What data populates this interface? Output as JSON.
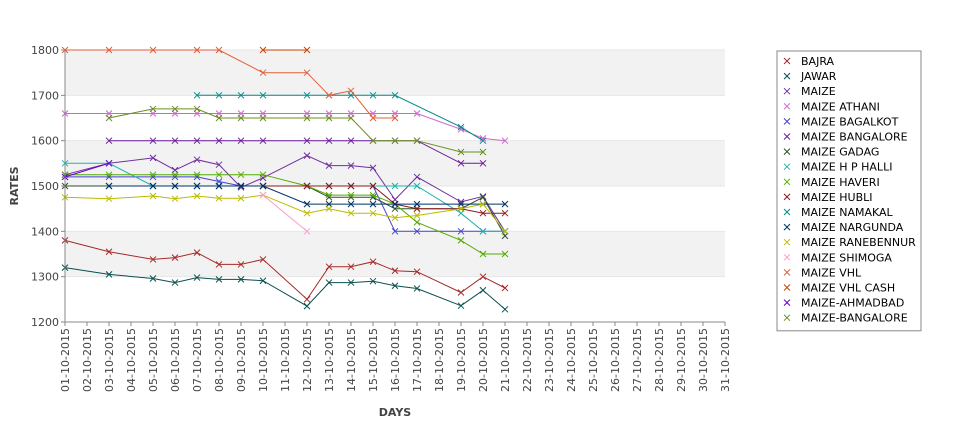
{
  "chart_data": {
    "type": "line",
    "xlabel": "DAYS",
    "ylabel": "RATES",
    "ylim": [
      1200,
      1800
    ],
    "yticks": [
      1200,
      1300,
      1400,
      1500,
      1600,
      1700,
      1800
    ],
    "grid": "alternating horizontal bands",
    "legend_position": "right",
    "categories": [
      "01-10-2015",
      "02-10-2015",
      "03-10-2015",
      "04-10-2015",
      "05-10-2015",
      "06-10-2015",
      "07-10-2015",
      "08-10-2015",
      "09-10-2015",
      "10-10-2015",
      "11-10-2015",
      "12-10-2015",
      "13-10-2015",
      "14-10-2015",
      "15-10-2015",
      "16-10-2015",
      "17-10-2015",
      "18-10-2015",
      "19-10-2015",
      "20-10-2015",
      "21-10-2015",
      "22-10-2015",
      "23-10-2015",
      "24-10-2015",
      "25-10-2015",
      "26-10-2015",
      "27-10-2015",
      "28-10-2015",
      "29-10-2015",
      "30-10-2015",
      "31-10-2015"
    ],
    "series": [
      {
        "name": "BAJRA",
        "color": "#a52a2a",
        "values": [
          1380,
          null,
          1355,
          null,
          1338,
          1342,
          1353,
          1327,
          1327,
          1338,
          null,
          1250,
          1322,
          1322,
          1333,
          1313,
          1311,
          null,
          1265,
          1300,
          1275,
          null,
          null,
          null,
          null,
          null,
          null,
          null,
          null,
          null,
          null
        ]
      },
      {
        "name": "JAWAR",
        "color": "#0b4f4f",
        "values": [
          1320,
          null,
          1305,
          null,
          1296,
          1287,
          1298,
          1294,
          1294,
          1291,
          null,
          1235,
          1287,
          1287,
          1290,
          1280,
          1274,
          null,
          1236,
          1270,
          1228,
          null,
          null,
          null,
          null,
          null,
          null,
          null,
          null,
          null,
          null
        ]
      },
      {
        "name": "MAIZE",
        "color": "#7030a0",
        "values": [
          1525,
          null,
          1550,
          null,
          1562,
          1535,
          1558,
          1547,
          1497,
          1518,
          null,
          1567,
          1545,
          1545,
          1540,
          1470,
          1520,
          null,
          1465,
          1477,
          1400,
          null,
          null,
          null,
          null,
          null,
          null,
          null,
          null,
          null,
          null
        ]
      },
      {
        "name": "MAIZE ATHANI",
        "color": "#cc66cc",
        "values": [
          1660,
          null,
          1660,
          null,
          1660,
          1660,
          1660,
          1660,
          1660,
          1660,
          null,
          1660,
          1660,
          1660,
          1660,
          1660,
          1660,
          null,
          1625,
          1605,
          1600,
          null,
          null,
          null,
          null,
          null,
          null,
          null,
          null,
          null,
          null
        ]
      },
      {
        "name": "MAIZE BAGALKOT",
        "color": "#4444cc",
        "values": [
          1520,
          null,
          1520,
          null,
          1520,
          1520,
          1520,
          1510,
          1500,
          1500,
          null,
          1500,
          1500,
          1500,
          1500,
          1400,
          1400,
          null,
          1400,
          1400,
          1400,
          null,
          null,
          null,
          null,
          null,
          null,
          null,
          null,
          null,
          null
        ]
      },
      {
        "name": "MAIZE BANGALORE",
        "color": "#6a1b9a",
        "values": [
          null,
          null,
          1600,
          null,
          1600,
          1600,
          1600,
          1600,
          1600,
          1600,
          null,
          1600,
          1600,
          1600,
          1600,
          1600,
          1600,
          null,
          1550,
          1550,
          null,
          null,
          null,
          null,
          null,
          null,
          null,
          null,
          null,
          null,
          null
        ]
      },
      {
        "name": "MAIZE GADAG",
        "color": "#2f4f2f",
        "values": [
          1500,
          null,
          1500,
          null,
          1500,
          1500,
          1500,
          1500,
          1500,
          1500,
          null,
          1500,
          1475,
          1475,
          1475,
          1450,
          1450,
          null,
          1450,
          1475,
          1390,
          null,
          null,
          null,
          null,
          null,
          null,
          null,
          null,
          null,
          null
        ]
      },
      {
        "name": "MAIZE H P HALLI",
        "color": "#20b2aa",
        "values": [
          1550,
          null,
          1550,
          null,
          1500,
          1500,
          1500,
          1500,
          1500,
          1500,
          null,
          1500,
          1500,
          1500,
          1500,
          1500,
          1500,
          null,
          1440,
          1400,
          1400,
          null,
          null,
          null,
          null,
          null,
          null,
          null,
          null,
          null,
          null
        ]
      },
      {
        "name": "MAIZE HAVERI",
        "color": "#55aa00",
        "values": [
          1525,
          null,
          1525,
          null,
          1525,
          1525,
          1525,
          1525,
          1525,
          1525,
          null,
          1500,
          1480,
          1480,
          1480,
          1460,
          1420,
          null,
          1380,
          1350,
          1350,
          null,
          null,
          null,
          null,
          null,
          null,
          null,
          null,
          null,
          null
        ]
      },
      {
        "name": "MAIZE HUBLI",
        "color": "#8b1a1a",
        "values": [
          null,
          null,
          null,
          null,
          null,
          null,
          null,
          null,
          null,
          1500,
          null,
          1500,
          1500,
          1500,
          1500,
          1460,
          1450,
          null,
          1450,
          1440,
          1440,
          null,
          null,
          null,
          null,
          null,
          null,
          null,
          null,
          null,
          null
        ]
      },
      {
        "name": "MAIZE NAMAKAL",
        "color": "#008b8b",
        "values": [
          null,
          null,
          null,
          null,
          null,
          null,
          1700,
          1700,
          1700,
          1700,
          null,
          1700,
          1700,
          1700,
          1700,
          1700,
          null,
          null,
          1630,
          1600,
          null,
          null,
          null,
          null,
          null,
          null,
          null,
          null,
          null,
          null,
          null
        ]
      },
      {
        "name": "MAIZE NARGUNDA",
        "color": "#003366",
        "values": [
          null,
          null,
          1500,
          null,
          1500,
          1500,
          1500,
          1500,
          1500,
          1500,
          null,
          1460,
          1460,
          1460,
          1460,
          1460,
          1460,
          null,
          1460,
          1460,
          1460,
          null,
          null,
          null,
          null,
          null,
          null,
          null,
          null,
          null,
          null
        ]
      },
      {
        "name": "MAIZE RANEBENNUR",
        "color": "#bbbb00",
        "values": [
          1475,
          null,
          1472,
          null,
          1478,
          1472,
          1478,
          1473,
          1473,
          1480,
          null,
          1440,
          1450,
          1440,
          1440,
          1430,
          1435,
          null,
          1450,
          1460,
          1400,
          null,
          null,
          null,
          null,
          null,
          null,
          null,
          null,
          null,
          null
        ]
      },
      {
        "name": "MAIZE SHIMOGA",
        "color": "#ff99cc",
        "values": [
          null,
          null,
          null,
          null,
          null,
          null,
          null,
          null,
          null,
          1480,
          null,
          1400,
          null,
          null,
          null,
          null,
          null,
          null,
          null,
          null,
          null,
          null,
          null,
          null,
          null,
          null,
          null,
          null,
          null,
          null,
          null
        ]
      },
      {
        "name": "MAIZE VHL",
        "color": "#e0603a",
        "values": [
          1800,
          null,
          1800,
          null,
          1800,
          null,
          1800,
          1800,
          null,
          1750,
          null,
          1750,
          1700,
          1710,
          1650,
          1650,
          null,
          null,
          null,
          null,
          null,
          null,
          null,
          null,
          null,
          null,
          null,
          null,
          null,
          null,
          null
        ]
      },
      {
        "name": "MAIZE VHL CASH",
        "color": "#cc4400",
        "values": [
          null,
          null,
          null,
          null,
          null,
          null,
          null,
          null,
          null,
          1800,
          null,
          1800,
          null,
          null,
          null,
          null,
          null,
          null,
          null,
          null,
          null,
          null,
          null,
          null,
          null,
          null,
          null,
          null,
          null,
          null,
          null
        ]
      },
      {
        "name": "MAIZE-AHMADBAD",
        "color": "#6600cc",
        "values": [
          1520,
          null,
          1550,
          null,
          null,
          null,
          null,
          null,
          null,
          null,
          null,
          null,
          null,
          null,
          null,
          null,
          null,
          null,
          null,
          null,
          null,
          null,
          null,
          null,
          null,
          null,
          null,
          null,
          null,
          null,
          null
        ]
      },
      {
        "name": "MAIZE-BANGALORE",
        "color": "#6b8e23",
        "values": [
          null,
          null,
          1650,
          null,
          1670,
          1670,
          1670,
          1650,
          1650,
          1650,
          null,
          1650,
          1650,
          1650,
          1600,
          1600,
          1600,
          null,
          1575,
          1575,
          null,
          null,
          null,
          null,
          null,
          null,
          null,
          null,
          null,
          null,
          null
        ]
      }
    ]
  }
}
